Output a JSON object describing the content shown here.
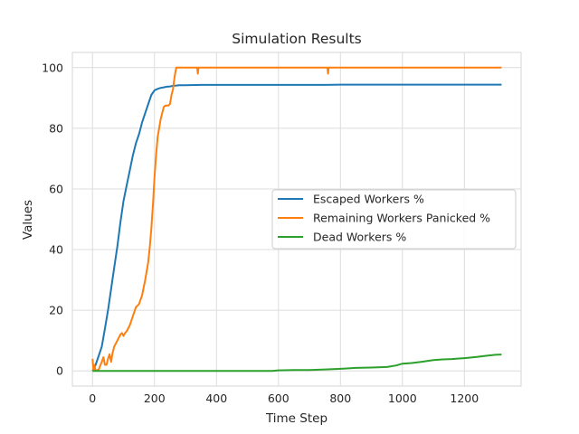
{
  "chart_data": {
    "type": "line",
    "title": "Simulation Results",
    "xlabel": "Time Step",
    "ylabel": "Values",
    "xlim": [
      -65,
      1383
    ],
    "ylim": [
      -5,
      105
    ],
    "xticks": [
      0,
      200,
      400,
      600,
      800,
      1000,
      1200
    ],
    "yticks": [
      0,
      20,
      40,
      60,
      80,
      100
    ],
    "grid": true,
    "legend_position": "center-right",
    "series": [
      {
        "name": "Escaped Workers %",
        "color": "#1f77b4",
        "x": [
          0,
          10,
          20,
          30,
          40,
          50,
          60,
          70,
          80,
          90,
          100,
          110,
          120,
          130,
          140,
          150,
          160,
          170,
          180,
          190,
          200,
          210,
          220,
          230,
          240,
          250,
          260,
          270,
          280,
          300,
          350,
          400,
          500,
          600,
          700,
          750,
          800,
          900,
          1000,
          1100,
          1200,
          1320
        ],
        "y": [
          0,
          2,
          5,
          8,
          14,
          20,
          27,
          34,
          41,
          49,
          56,
          61,
          66,
          71,
          75,
          78,
          82,
          85,
          88,
          91,
          92.5,
          93,
          93.3,
          93.5,
          93.7,
          93.8,
          94,
          94.1,
          94.2,
          94.2,
          94.3,
          94.3,
          94.3,
          94.3,
          94.3,
          94.3,
          94.4,
          94.4,
          94.4,
          94.4,
          94.4,
          94.4
        ]
      },
      {
        "name": "Remaining Workers Panicked %",
        "color": "#ff7f0e",
        "x": [
          0,
          3,
          6,
          10,
          20,
          30,
          35,
          40,
          45,
          50,
          55,
          60,
          65,
          70,
          75,
          80,
          90,
          95,
          100,
          105,
          110,
          120,
          130,
          140,
          150,
          160,
          170,
          180,
          185,
          190,
          195,
          200,
          205,
          210,
          215,
          220,
          225,
          230,
          235,
          240,
          245,
          250,
          255,
          260,
          265,
          270,
          275,
          280,
          300,
          338,
          340,
          342,
          400,
          500,
          600,
          700,
          758,
          760,
          762,
          800,
          900,
          1000,
          1100,
          1200,
          1320
        ],
        "y": [
          4,
          0,
          2,
          0,
          0.5,
          3,
          4.5,
          2,
          2,
          4,
          5.5,
          3,
          6,
          8,
          9,
          10,
          12,
          12.5,
          11.5,
          12.5,
          13,
          15,
          18,
          21,
          22,
          25,
          30,
          36,
          41,
          47,
          55,
          64,
          71,
          77,
          80,
          83,
          85,
          87,
          87.5,
          87.5,
          87.5,
          88,
          91,
          93,
          97,
          100,
          100,
          100,
          100,
          100,
          98,
          100,
          100,
          100,
          100,
          100,
          100,
          98,
          100,
          100,
          100,
          100,
          100,
          100,
          100
        ]
      },
      {
        "name": "Dead Workers %",
        "color": "#2ca02c",
        "x": [
          0,
          100,
          200,
          300,
          400,
          500,
          580,
          600,
          650,
          700,
          750,
          800,
          850,
          900,
          950,
          980,
          1000,
          1030,
          1060,
          1100,
          1130,
          1160,
          1200,
          1240,
          1270,
          1300,
          1320
        ],
        "y": [
          0,
          0,
          0,
          0,
          0,
          0,
          0,
          0.2,
          0.3,
          0.3,
          0.5,
          0.7,
          1.0,
          1.1,
          1.3,
          1.8,
          2.4,
          2.6,
          3.0,
          3.6,
          3.8,
          3.9,
          4.2,
          4.6,
          5.0,
          5.3,
          5.4
        ]
      }
    ]
  }
}
